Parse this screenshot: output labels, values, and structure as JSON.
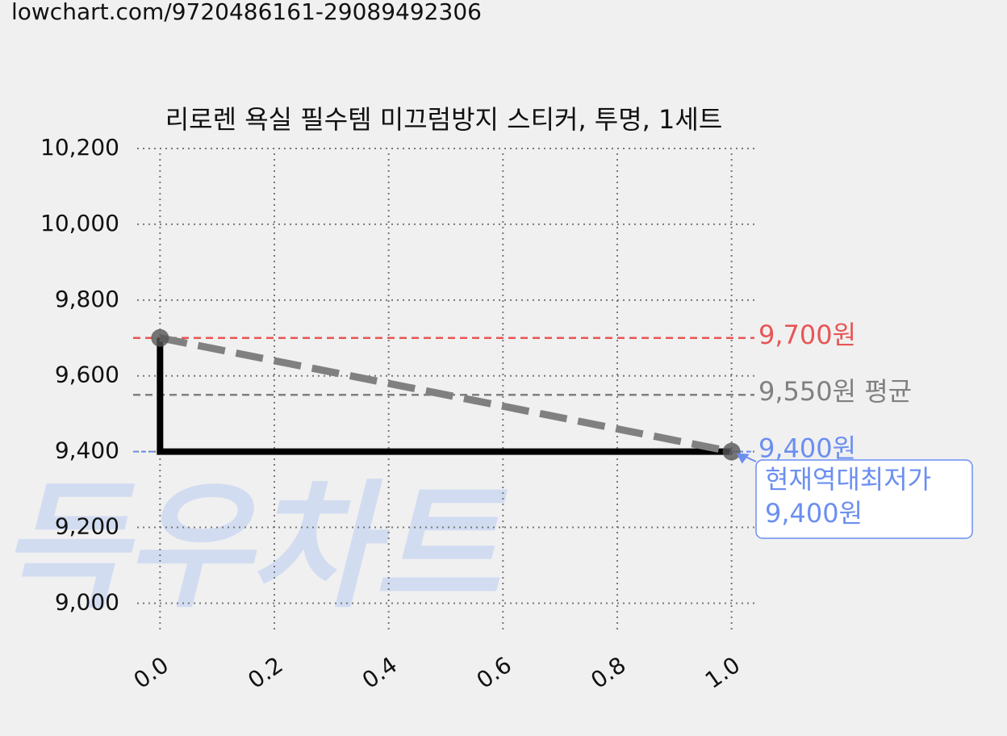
{
  "url": "lowchart.com/9720486161-29089492306",
  "chart_data": {
    "type": "line",
    "title": "리로렌 욕실 필수템 미끄럼방지 스티커, 투명, 1세트",
    "watermark": "득우차트",
    "x": [
      0,
      1
    ],
    "series": [
      {
        "values": [
          9700,
          9400
        ],
        "color": "#000000",
        "trend_color": "#808080"
      }
    ],
    "step": "pre",
    "xlim": [
      -0.04,
      1.04
    ],
    "ylim": [
      8920,
      10200
    ],
    "xticks": [
      {
        "value": 0,
        "label": "0.0"
      },
      {
        "value": 0.2,
        "label": "0.2"
      },
      {
        "value": 0.4,
        "label": "0.4"
      },
      {
        "value": 0.6,
        "label": "0.6"
      },
      {
        "value": 0.8,
        "label": "0.8"
      },
      {
        "value": 1,
        "label": "1.0"
      }
    ],
    "yticks": [
      {
        "value": 9000,
        "label": "9,000"
      },
      {
        "value": 9200,
        "label": "9,200"
      },
      {
        "value": 9400,
        "label": "9,400"
      },
      {
        "value": 9600,
        "label": "9,600"
      },
      {
        "value": 9800,
        "label": "9,800"
      },
      {
        "value": 10000,
        "label": "10,000"
      },
      {
        "value": 10200,
        "label": "10,200"
      }
    ],
    "grid": true,
    "reference_lines": [
      {
        "value": 9700,
        "label": "9,700원",
        "color": "#e85555"
      },
      {
        "value": 9550,
        "label": "9,550원 평균",
        "color": "#808080"
      },
      {
        "value": 9400,
        "label": "9,400원",
        "color": "#6b8ff0"
      }
    ],
    "annotation": {
      "lines": [
        "현재역대최저가",
        "9,400원"
      ],
      "x": 1,
      "y": 9400,
      "color": "#6b8ff0"
    }
  }
}
